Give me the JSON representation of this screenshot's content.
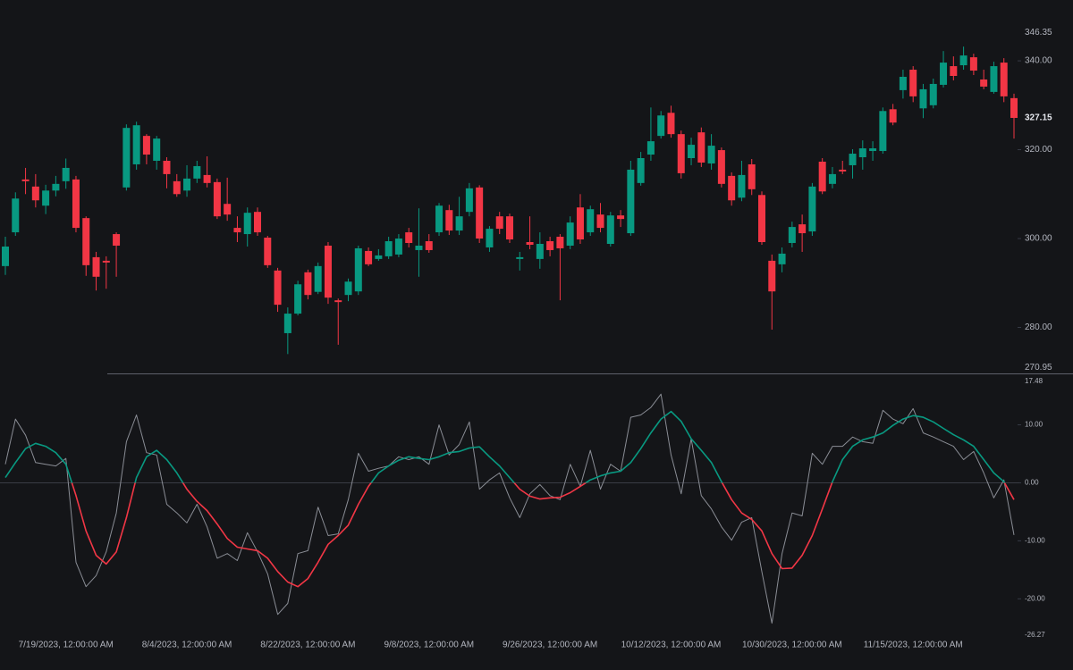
{
  "chart_data": [
    {
      "type": "candlestick",
      "categories": [
        null,
        null,
        null,
        null,
        null,
        null,
        "7/19/2023, 12:00:00 AM",
        null,
        null,
        null,
        null,
        null,
        null,
        null,
        null,
        null,
        null,
        null,
        "8/4/2023, 12:00:00 AM",
        null,
        null,
        null,
        null,
        null,
        null,
        null,
        null,
        null,
        null,
        null,
        "8/22/2023, 12:00:00 AM",
        null,
        null,
        null,
        null,
        null,
        null,
        null,
        null,
        null,
        null,
        null,
        "9/8/2023, 12:00:00 AM",
        null,
        null,
        null,
        null,
        null,
        null,
        null,
        null,
        null,
        null,
        null,
        "9/26/2023, 12:00:00 AM",
        null,
        null,
        null,
        null,
        null,
        null,
        null,
        null,
        null,
        null,
        null,
        "10/12/2023, 12:00:00 AM",
        null,
        null,
        null,
        null,
        null,
        null,
        null,
        null,
        null,
        null,
        null,
        "10/30/2023, 12:00:00 AM",
        null,
        null,
        null,
        null,
        null,
        null,
        null,
        null,
        null,
        null,
        null,
        "11/15/2023, 12:00:00 AM",
        null,
        null,
        null,
        null,
        null,
        null,
        null,
        null,
        null,
        null
      ],
      "open": [
        293.8,
        301.4,
        313.3,
        311.7,
        307.4,
        310.8,
        312.9,
        313.3,
        304.6,
        295.8,
        295.0,
        301.0,
        311.5,
        316.7,
        323.1,
        317.5,
        317.5,
        312.9,
        310.8,
        313.5,
        314.3,
        312.7,
        307.8,
        302.4,
        301.0,
        306.0,
        300.2,
        292.8,
        278.7,
        283.1,
        292.4,
        288.0,
        298.4,
        286.1,
        287.3,
        288.1,
        297.2,
        295.4,
        296.0,
        296.4,
        301.4,
        297.4,
        299.4,
        301.4,
        306.4,
        301.8,
        306.0,
        311.5,
        298.0,
        305.0,
        305.0,
        295.4,
        299.2,
        295.4,
        299.4,
        300.4,
        298.4,
        307.0,
        301.4,
        305.4,
        298.8,
        305.2,
        301.2,
        312.5,
        318.9,
        323.1,
        328.3,
        323.5,
        318.1,
        323.9,
        316.9,
        319.9,
        314.1,
        309.2,
        316.7,
        309.8,
        295.0,
        294.2,
        299.0,
        303.2,
        301.6,
        317.3,
        312.3,
        315.5,
        316.5,
        318.3,
        319.7,
        319.7,
        329.1,
        333.4,
        338.0,
        329.3,
        330.0,
        334.6,
        338.8,
        339.0,
        340.8,
        335.8,
        333.0,
        339.6,
        331.6
      ],
      "high": [
        300.4,
        310.4,
        315.9,
        314.5,
        312.1,
        314.1,
        318.0,
        314.1,
        305.0,
        297.0,
        296.0,
        301.4,
        325.7,
        326.3,
        323.5,
        323.1,
        318.3,
        314.5,
        316.5,
        317.5,
        318.5,
        313.5,
        313.7,
        305.0,
        307.0,
        307.0,
        300.6,
        293.4,
        284.5,
        290.5,
        293.0,
        294.6,
        299.2,
        286.5,
        291.0,
        298.4,
        298.0,
        297.6,
        300.4,
        301.0,
        302.4,
        306.8,
        301.0,
        308.0,
        307.6,
        309.4,
        312.5,
        312.0,
        302.8,
        306.0,
        305.6,
        297.0,
        305.0,
        301.4,
        300.4,
        301.0,
        305.0,
        310.0,
        307.4,
        308.0,
        306.0,
        306.4,
        317.5,
        319.5,
        329.5,
        328.7,
        329.9,
        324.3,
        322.7,
        325.0,
        323.5,
        320.5,
        314.9,
        317.5,
        317.9,
        310.6,
        296.4,
        298.0,
        303.8,
        305.4,
        312.5,
        318.1,
        316.1,
        317.5,
        320.1,
        322.1,
        321.9,
        329.5,
        330.3,
        338.0,
        338.8,
        334.8,
        336.0,
        342.2,
        341.0,
        343.2,
        341.6,
        338.0,
        339.8,
        340.6,
        332.6
      ],
      "low": [
        291.8,
        300.6,
        310.0,
        307.0,
        305.5,
        309.5,
        311.2,
        301.4,
        291.6,
        288.3,
        288.7,
        291.4,
        310.8,
        315.5,
        316.7,
        315.5,
        311.3,
        309.4,
        309.4,
        312.5,
        311.5,
        304.4,
        304.0,
        299.2,
        298.2,
        300.6,
        293.4,
        283.5,
        274.0,
        282.7,
        286.3,
        287.5,
        285.3,
        276.1,
        285.9,
        287.3,
        293.8,
        295.0,
        295.4,
        295.8,
        298.0,
        291.4,
        296.8,
        300.6,
        300.8,
        300.8,
        305.0,
        299.0,
        297.0,
        301.0,
        299.0,
        292.8,
        297.6,
        293.2,
        296.0,
        286.1,
        297.6,
        298.8,
        300.6,
        301.4,
        298.2,
        302.6,
        300.6,
        311.9,
        317.5,
        322.5,
        322.7,
        313.5,
        316.5,
        316.1,
        315.5,
        311.5,
        307.4,
        308.4,
        309.8,
        298.6,
        279.5,
        292.4,
        298.0,
        297.0,
        300.6,
        310.0,
        311.3,
        314.5,
        313.5,
        315.5,
        317.5,
        319.1,
        325.5,
        331.5,
        330.7,
        327.1,
        329.3,
        334.0,
        335.6,
        338.0,
        336.8,
        333.6,
        332.6,
        330.7,
        322.5
      ],
      "close": [
        298.2,
        309.0,
        312.9,
        308.6,
        310.8,
        312.3,
        315.9,
        302.4,
        294.0,
        291.4,
        294.6,
        298.4,
        324.9,
        325.5,
        318.9,
        322.5,
        314.5,
        310.0,
        313.5,
        316.3,
        312.5,
        305.0,
        305.4,
        301.4,
        305.8,
        301.4,
        294.0,
        285.1,
        283.1,
        289.7,
        287.3,
        293.8,
        286.7,
        285.7,
        290.3,
        297.8,
        294.2,
        296.2,
        299.4,
        300.0,
        299.0,
        298.4,
        297.4,
        307.4,
        301.8,
        305.0,
        311.3,
        300.0,
        302.2,
        302.2,
        299.8,
        295.8,
        298.6,
        298.8,
        297.4,
        297.8,
        303.6,
        299.8,
        306.6,
        302.4,
        305.2,
        304.4,
        315.5,
        318.1,
        321.9,
        327.7,
        323.5,
        314.7,
        321.1,
        317.1,
        320.9,
        312.3,
        308.6,
        314.3,
        311.1,
        299.2,
        288.1,
        296.6,
        302.6,
        301.2,
        311.7,
        310.6,
        314.5,
        315.1,
        319.1,
        320.3,
        320.3,
        328.7,
        326.1,
        336.4,
        332.0,
        333.6,
        334.8,
        339.6,
        336.6,
        341.2,
        337.8,
        334.2,
        338.8,
        332.0,
        327.15
      ],
      "last_price": 327.15,
      "color_up": "#089981",
      "color_down": "#f23645",
      "ylim": [
        270.95,
        346.35
      ],
      "yticks": [
        {
          "value": 280,
          "label": "280.00"
        },
        {
          "value": 300,
          "label": "300.00"
        },
        {
          "value": 320,
          "label": "320.00"
        },
        {
          "value": 340,
          "label": "340.00"
        }
      ]
    },
    {
      "type": "line",
      "series": [
        {
          "color": "#8a8d95",
          "values": [
            3.2,
            11.0,
            8.2,
            3.5,
            3.2,
            2.9,
            4.2,
            -13.7,
            -17.9,
            -16.0,
            -11.9,
            -5.2,
            7.1,
            11.7,
            5.2,
            4.8,
            -3.7,
            -5.2,
            -6.9,
            -3.7,
            -7.6,
            -13.0,
            -12.2,
            -13.4,
            -8.6,
            -11.9,
            -15.7,
            -22.7,
            -20.8,
            -12.2,
            -11.7,
            -4.2,
            -9.1,
            -8.8,
            -2.9,
            5.1,
            2.0,
            2.5,
            2.9,
            4.5,
            4.0,
            4.5,
            3.2,
            10.0,
            4.8,
            6.6,
            10.5,
            -1.1,
            0.5,
            1.7,
            -2.6,
            -6.0,
            -1.9,
            -0.3,
            -2.2,
            -2.9,
            3.2,
            -0.6,
            5.6,
            -1.1,
            3.2,
            2.0,
            11.3,
            11.7,
            13.0,
            15.3,
            4.8,
            -1.9,
            7.6,
            -2.2,
            -4.5,
            -7.6,
            -9.9,
            -6.8,
            -6.0,
            -15.3,
            -24.2,
            -12.2,
            -5.2,
            -5.7,
            5.1,
            3.2,
            6.3,
            6.3,
            7.9,
            7.1,
            6.8,
            12.5,
            11.0,
            10.2,
            12.8,
            8.6,
            7.9,
            7.1,
            6.3,
            4.0,
            5.4,
            1.7,
            -2.6,
            0.5,
            -9.0
          ]
        },
        {
          "color_up": "#089981",
          "color_down": "#f23645",
          "values": [
            0.9,
            3.5,
            5.9,
            6.8,
            6.3,
            5.2,
            3.2,
            -2.2,
            -8.3,
            -12.5,
            -14.0,
            -11.9,
            -6.0,
            0.9,
            4.5,
            5.6,
            4.0,
            1.7,
            -1.1,
            -3.2,
            -4.8,
            -7.1,
            -9.6,
            -11.1,
            -11.4,
            -11.7,
            -13.0,
            -15.3,
            -17.1,
            -17.9,
            -16.5,
            -13.7,
            -10.6,
            -9.1,
            -7.3,
            -3.7,
            -0.6,
            1.7,
            2.9,
            3.9,
            4.5,
            4.2,
            4.0,
            4.5,
            5.2,
            5.4,
            6.0,
            6.2,
            4.5,
            2.9,
            0.9,
            -1.1,
            -2.3,
            -2.8,
            -2.6,
            -2.5,
            -1.7,
            -0.6,
            0.5,
            1.2,
            1.7,
            2.0,
            3.5,
            5.9,
            8.6,
            11.0,
            12.3,
            10.6,
            7.6,
            5.6,
            3.5,
            0.2,
            -2.9,
            -5.2,
            -6.3,
            -8.3,
            -12.2,
            -14.8,
            -14.7,
            -12.5,
            -9.1,
            -4.5,
            0.2,
            4.0,
            6.3,
            7.4,
            7.9,
            8.6,
            9.9,
            11.0,
            11.6,
            11.3,
            10.5,
            9.4,
            8.3,
            7.4,
            6.3,
            4.0,
            1.7,
            0.2,
            -2.9
          ]
        }
      ],
      "zero_line": true,
      "ylim": [
        -26.27,
        17.48
      ],
      "yticks": [
        {
          "value": -20,
          "label": "-20.00"
        },
        {
          "value": -10,
          "label": "-10.00"
        },
        {
          "value": 0,
          "label": "0.00"
        },
        {
          "value": 10,
          "label": "10.00"
        }
      ]
    }
  ]
}
